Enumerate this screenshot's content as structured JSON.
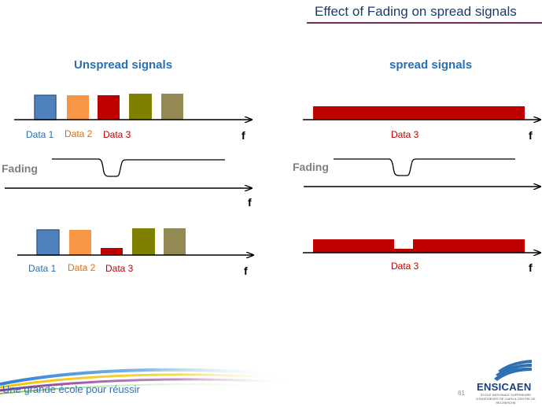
{
  "slide": {
    "title": "Effect of Fading on spread signals",
    "page_number": "61",
    "footer_tagline": "Une grande école pour réussir",
    "brand": "ENSICAEN",
    "brand_subtitle": "ÉCOLE NATIONALE SUPÉRIEURE D'INGÉNIEURS DE CAEN & CENTRE DE RECHERCHE"
  },
  "left": {
    "heading": "Unspread signals",
    "top_labels": [
      "Data 1",
      "Data 2",
      "Data 3"
    ],
    "bottom_labels": [
      "Data 1",
      "Data 2",
      "Data 3"
    ],
    "fading_label": "Fading",
    "axis_label": "f"
  },
  "right": {
    "heading": "spread signals",
    "top_label": "Data 3",
    "bottom_label": "Data 3",
    "fading_label": "Fading",
    "axis_label": "f"
  },
  "colors": {
    "data1": "#4f81bd",
    "data2": "#f79646",
    "data3": "#c00000",
    "data4": "#7f7f00",
    "data5": "#938953",
    "heading": "#2a6fb0",
    "title": "#1f3a6e"
  }
}
